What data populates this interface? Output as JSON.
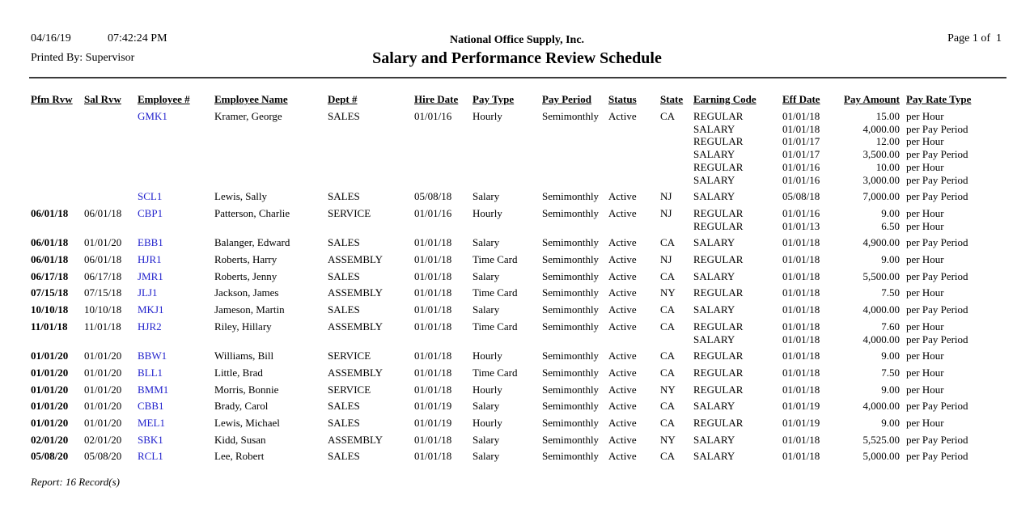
{
  "page": {
    "date": "04/16/19",
    "time": "07:42:24 PM",
    "printed_by": "Printed By: Supervisor",
    "company": "National Office Supply, Inc.",
    "title": "Salary and Performance Review Schedule",
    "page_label": "Page 1 of  1"
  },
  "colors": {
    "link": "#2222cc",
    "rule": "#3c3c3c"
  },
  "table": {
    "headers": {
      "pfm": "Pfm Rvw",
      "sal": "Sal Rvw",
      "emp": "Employee #",
      "name": "Employee Name",
      "dept": "Dept #",
      "hire": "Hire Date",
      "ptype": "Pay Type",
      "pperiod": "Pay Period",
      "status": "Status",
      "state": "State",
      "ecode": "Earning Code",
      "effdate": "Eff Date",
      "amount": "Pay Amount",
      "ratetype": "Pay Rate Type"
    },
    "rows": [
      {
        "pfm": "",
        "sal": "",
        "emp": "GMK1",
        "name": "Kramer, George",
        "dept": "SALES",
        "hire": "01/01/16",
        "ptype": "Hourly",
        "pperiod": "Semimonthly",
        "status": "Active",
        "state": "CA",
        "earnings": [
          {
            "code": "REGULAR",
            "eff": "01/01/18",
            "amount": "15.00",
            "rate": "per Hour"
          },
          {
            "code": "SALARY",
            "eff": "01/01/18",
            "amount": "4,000.00",
            "rate": "per Pay Period"
          },
          {
            "code": "REGULAR",
            "eff": "01/01/17",
            "amount": "12.00",
            "rate": "per Hour"
          },
          {
            "code": "SALARY",
            "eff": "01/01/17",
            "amount": "3,500.00",
            "rate": "per Pay Period"
          },
          {
            "code": "REGULAR",
            "eff": "01/01/16",
            "amount": "10.00",
            "rate": "per Hour"
          },
          {
            "code": "SALARY",
            "eff": "01/01/16",
            "amount": "3,000.00",
            "rate": "per Pay Period"
          }
        ]
      },
      {
        "pfm": "",
        "sal": "",
        "emp": "SCL1",
        "name": "Lewis, Sally",
        "dept": "SALES",
        "hire": "05/08/18",
        "ptype": "Salary",
        "pperiod": "Semimonthly",
        "status": "Active",
        "state": "NJ",
        "earnings": [
          {
            "code": "SALARY",
            "eff": "05/08/18",
            "amount": "7,000.00",
            "rate": "per Pay Period"
          }
        ]
      },
      {
        "pfm": "06/01/18",
        "sal": "06/01/18",
        "emp": "CBP1",
        "name": "Patterson, Charlie",
        "dept": "SERVICE",
        "hire": "01/01/16",
        "ptype": "Hourly",
        "pperiod": "Semimonthly",
        "status": "Active",
        "state": "NJ",
        "earnings": [
          {
            "code": "REGULAR",
            "eff": "01/01/16",
            "amount": "9.00",
            "rate": "per Hour"
          },
          {
            "code": "REGULAR",
            "eff": "01/01/13",
            "amount": "6.50",
            "rate": "per Hour"
          }
        ]
      },
      {
        "pfm": "06/01/18",
        "sal": "01/01/20",
        "emp": "EBB1",
        "name": "Balanger, Edward",
        "dept": "SALES",
        "hire": "01/01/18",
        "ptype": "Salary",
        "pperiod": "Semimonthly",
        "status": "Active",
        "state": "CA",
        "earnings": [
          {
            "code": "SALARY",
            "eff": "01/01/18",
            "amount": "4,900.00",
            "rate": "per Pay Period"
          }
        ]
      },
      {
        "pfm": "06/01/18",
        "sal": "06/01/18",
        "emp": "HJR1",
        "name": "Roberts, Harry",
        "dept": "ASSEMBLY",
        "hire": "01/01/18",
        "ptype": "Time Card",
        "pperiod": "Semimonthly",
        "status": "Active",
        "state": "NJ",
        "earnings": [
          {
            "code": "REGULAR",
            "eff": "01/01/18",
            "amount": "9.00",
            "rate": "per Hour"
          }
        ]
      },
      {
        "pfm": "06/17/18",
        "sal": "06/17/18",
        "emp": "JMR1",
        "name": "Roberts, Jenny",
        "dept": "SALES",
        "hire": "01/01/18",
        "ptype": "Salary",
        "pperiod": "Semimonthly",
        "status": "Active",
        "state": "CA",
        "earnings": [
          {
            "code": "SALARY",
            "eff": "01/01/18",
            "amount": "5,500.00",
            "rate": "per Pay Period"
          }
        ]
      },
      {
        "pfm": "07/15/18",
        "sal": "07/15/18",
        "emp": "JLJ1",
        "name": "Jackson, James",
        "dept": "ASSEMBLY",
        "hire": "01/01/18",
        "ptype": "Time Card",
        "pperiod": "Semimonthly",
        "status": "Active",
        "state": "NY",
        "earnings": [
          {
            "code": "REGULAR",
            "eff": "01/01/18",
            "amount": "7.50",
            "rate": "per Hour"
          }
        ]
      },
      {
        "pfm": "10/10/18",
        "sal": "10/10/18",
        "emp": "MKJ1",
        "name": "Jameson, Martin",
        "dept": "SALES",
        "hire": "01/01/18",
        "ptype": "Salary",
        "pperiod": "Semimonthly",
        "status": "Active",
        "state": "CA",
        "earnings": [
          {
            "code": "SALARY",
            "eff": "01/01/18",
            "amount": "4,000.00",
            "rate": "per Pay Period"
          }
        ]
      },
      {
        "pfm": "11/01/18",
        "sal": "11/01/18",
        "emp": "HJR2",
        "name": "Riley, Hillary",
        "dept": "ASSEMBLY",
        "hire": "01/01/18",
        "ptype": "Time Card",
        "pperiod": "Semimonthly",
        "status": "Active",
        "state": "CA",
        "earnings": [
          {
            "code": "REGULAR",
            "eff": "01/01/18",
            "amount": "7.60",
            "rate": "per Hour"
          },
          {
            "code": "SALARY",
            "eff": "01/01/18",
            "amount": "4,000.00",
            "rate": "per Pay Period"
          }
        ]
      },
      {
        "pfm": "01/01/20",
        "sal": "01/01/20",
        "emp": "BBW1",
        "name": "Williams, Bill",
        "dept": "SERVICE",
        "hire": "01/01/18",
        "ptype": "Hourly",
        "pperiod": "Semimonthly",
        "status": "Active",
        "state": "CA",
        "earnings": [
          {
            "code": "REGULAR",
            "eff": "01/01/18",
            "amount": "9.00",
            "rate": "per Hour"
          }
        ]
      },
      {
        "pfm": "01/01/20",
        "sal": "01/01/20",
        "emp": "BLL1",
        "name": "Little, Brad",
        "dept": "ASSEMBLY",
        "hire": "01/01/18",
        "ptype": "Time Card",
        "pperiod": "Semimonthly",
        "status": "Active",
        "state": "CA",
        "earnings": [
          {
            "code": "REGULAR",
            "eff": "01/01/18",
            "amount": "7.50",
            "rate": "per Hour"
          }
        ]
      },
      {
        "pfm": "01/01/20",
        "sal": "01/01/20",
        "emp": "BMM1",
        "name": "Morris, Bonnie",
        "dept": "SERVICE",
        "hire": "01/01/18",
        "ptype": "Hourly",
        "pperiod": "Semimonthly",
        "status": "Active",
        "state": "NY",
        "earnings": [
          {
            "code": "REGULAR",
            "eff": "01/01/18",
            "amount": "9.00",
            "rate": "per Hour"
          }
        ]
      },
      {
        "pfm": "01/01/20",
        "sal": "01/01/20",
        "emp": "CBB1",
        "name": "Brady, Carol",
        "dept": "SALES",
        "hire": "01/01/19",
        "ptype": "Salary",
        "pperiod": "Semimonthly",
        "status": "Active",
        "state": "CA",
        "earnings": [
          {
            "code": "SALARY",
            "eff": "01/01/19",
            "amount": "4,000.00",
            "rate": "per Pay Period"
          }
        ]
      },
      {
        "pfm": "01/01/20",
        "sal": "01/01/20",
        "emp": "MEL1",
        "name": "Lewis, Michael",
        "dept": "SALES",
        "hire": "01/01/19",
        "ptype": "Hourly",
        "pperiod": "Semimonthly",
        "status": "Active",
        "state": "CA",
        "earnings": [
          {
            "code": "REGULAR",
            "eff": "01/01/19",
            "amount": "9.00",
            "rate": "per Hour"
          }
        ]
      },
      {
        "pfm": "02/01/20",
        "sal": "02/01/20",
        "emp": "SBK1",
        "name": "Kidd, Susan",
        "dept": "ASSEMBLY",
        "hire": "01/01/18",
        "ptype": "Salary",
        "pperiod": "Semimonthly",
        "status": "Active",
        "state": "NY",
        "earnings": [
          {
            "code": "SALARY",
            "eff": "01/01/18",
            "amount": "5,525.00",
            "rate": "per Pay Period"
          }
        ]
      },
      {
        "pfm": "05/08/20",
        "sal": "05/08/20",
        "emp": "RCL1",
        "name": "Lee, Robert",
        "dept": "SALES",
        "hire": "01/01/18",
        "ptype": "Salary",
        "pperiod": "Semimonthly",
        "status": "Active",
        "state": "CA",
        "earnings": [
          {
            "code": "SALARY",
            "eff": "01/01/18",
            "amount": "5,000.00",
            "rate": "per Pay Period"
          }
        ]
      }
    ]
  },
  "footer": {
    "summary": "Report: 16 Record(s)"
  }
}
